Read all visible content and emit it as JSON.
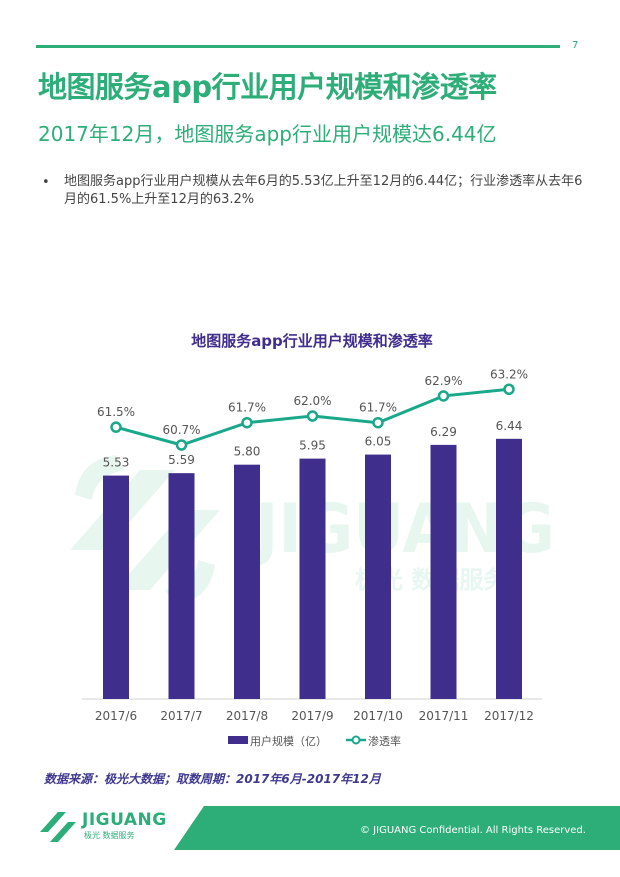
{
  "header": {
    "page_number": "7",
    "title": "地图服务app行业用户规模和渗透率",
    "subtitle": "2017年12月，地图服务app行业用户规模达6.44亿",
    "bullet_marker": "•",
    "bullet_text": "地图服务app行业用户规模从去年6月的5.53亿上升至12月的6.44亿；行业渗透率从去年6月的61.5%上升至12月的63.2%"
  },
  "chart_data": {
    "type": "bar",
    "title": "地图服务app行业用户规模和渗透率",
    "categories": [
      "2017/6",
      "2017/7",
      "2017/8",
      "2017/9",
      "2017/10",
      "2017/11",
      "2017/12"
    ],
    "series": [
      {
        "name": "用户规模（亿）",
        "type": "bar",
        "values": [
          5.53,
          5.59,
          5.8,
          5.95,
          6.05,
          6.29,
          6.44
        ],
        "labels": [
          "5.53",
          "5.59",
          "5.80",
          "5.95",
          "6.05",
          "6.29",
          "6.44"
        ],
        "color": "#3f2e8c"
      },
      {
        "name": "渗透率",
        "type": "line",
        "values": [
          61.5,
          60.7,
          61.7,
          62.0,
          61.7,
          62.9,
          63.2
        ],
        "labels": [
          "61.5%",
          "60.7%",
          "61.7%",
          "62.0%",
          "61.7%",
          "62.9%",
          "63.2%"
        ],
        "color": "#1aa88a"
      }
    ],
    "legend_position": "bottom",
    "grid": false
  },
  "watermark": {
    "brand": "JIGUANG",
    "sub": "极光 数据服务"
  },
  "source": "数据来源：极光大数据；取数周期：2017年6月-2017年12月",
  "footer": {
    "logo_name": "JIGUANG",
    "logo_sub": "极光 数据服务",
    "copyright": "© JIGUANG Confidential. All Rights Reserved."
  },
  "colors": {
    "accent": "#2dae78",
    "bar": "#3f2e8c",
    "line": "#1aa88a",
    "source": "#3f3a8f"
  }
}
